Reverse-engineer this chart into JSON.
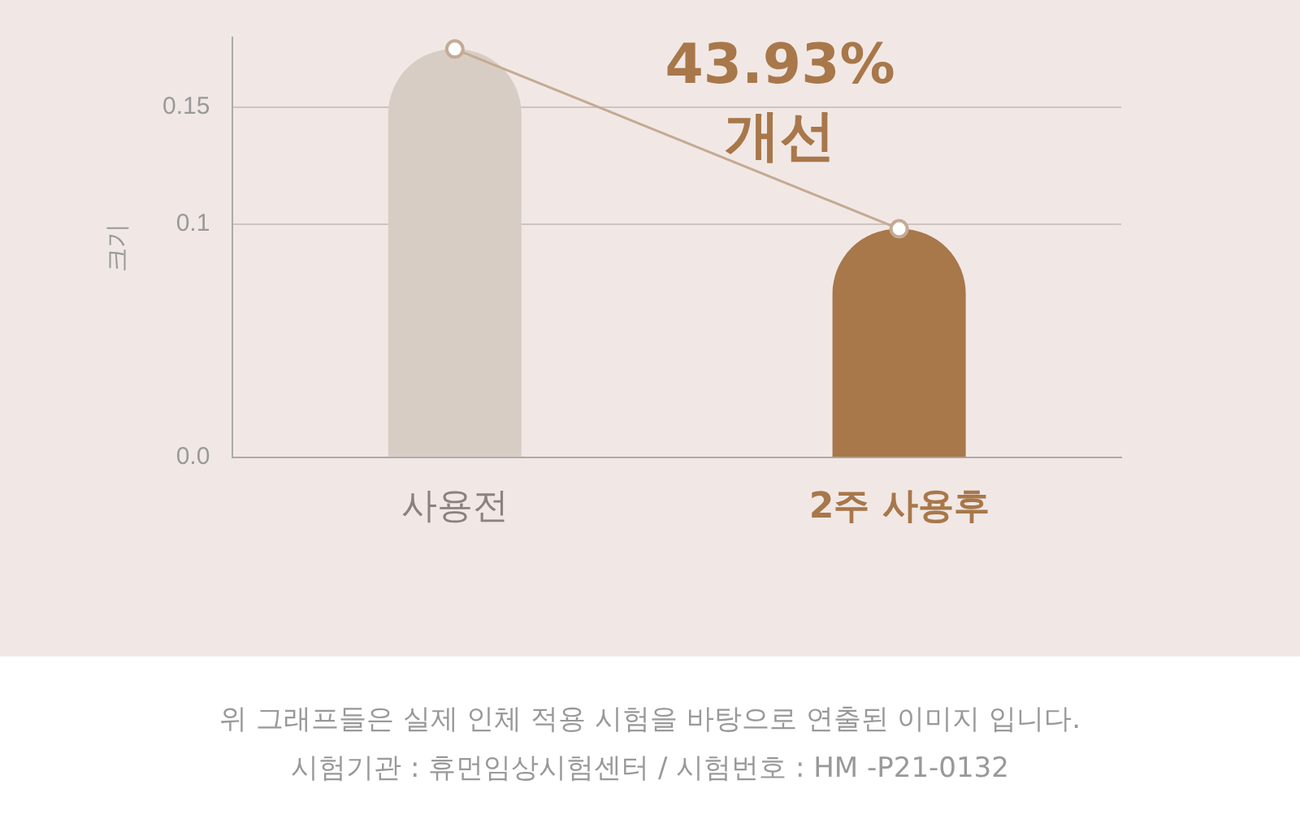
{
  "chart_data": {
    "type": "bar",
    "ylabel": "크기",
    "categories": [
      "사용전",
      "2주 사용후"
    ],
    "series": [
      {
        "colors": [
          "#d8cdc4",
          "#a8774a"
        ],
        "values": [
          0.175,
          0.098
        ]
      },
      {
        "type": "line",
        "color": "#c4aa93",
        "values": [
          0.175,
          0.098
        ],
        "marker": "circle"
      }
    ],
    "ylim": [
      0,
      0.18
    ],
    "yticks": [
      {
        "value": 0,
        "label": "0.0"
      },
      0.1,
      0.15
    ],
    "grid": "y",
    "legend": false,
    "annotations": [
      "43.93%\n개선",
      "위 그래프들은 실제 인체 적용 시험을 바탕으로 연출된 이미지 입니다.",
      "시험기관 : 휴먼임상시험센터 / 시험번호 : HM -P21-0132"
    ]
  }
}
